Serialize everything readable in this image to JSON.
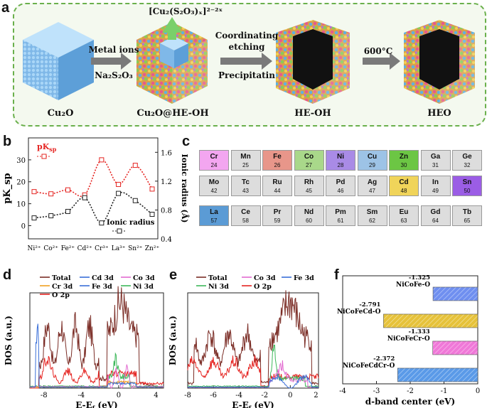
{
  "panels": {
    "a": "a",
    "b": "b",
    "c": "c",
    "d": "d",
    "e": "e",
    "f": "f"
  },
  "schematic": {
    "stages": [
      "Cu₂O",
      "Cu₂O@HE-OH",
      "HE-OH",
      "HEO"
    ],
    "arrow1": [
      "Metal ions",
      "Na₂S₂O₃"
    ],
    "arrow2": [
      "Coordinating",
      "etching",
      "Precipitatin"
    ],
    "arrow3": "600°C",
    "complex": "[Cu₂(S₂O₃)ₓ]²⁻²ˣ"
  },
  "colors": {
    "red": "#e52421",
    "black": "#222222",
    "pink": "#f3a6f0",
    "salmon": "#e8968a",
    "green": "#a9d88a",
    "violet": "#a98be6",
    "blue": "#9dc3e6",
    "lime": "#6cc644",
    "yellow": "#f0d45a",
    "purple": "#9b5de5",
    "lablue": "#5b9bd5",
    "gray": "#dddddd"
  },
  "periodic_table": {
    "rows": [
      [
        {
          "s": "Cr",
          "n": "24",
          "c": "pink"
        },
        {
          "s": "Mn",
          "n": "25",
          "c": "gray"
        },
        {
          "s": "Fe",
          "n": "26",
          "c": "salmon"
        },
        {
          "s": "Co",
          "n": "27",
          "c": "green"
        },
        {
          "s": "Ni",
          "n": "28",
          "c": "violet"
        },
        {
          "s": "Cu",
          "n": "29",
          "c": "blue"
        },
        {
          "s": "Zn",
          "n": "30",
          "c": "lime"
        },
        {
          "s": "Ga",
          "n": "31",
          "c": "gray"
        },
        {
          "s": "Ge",
          "n": "32",
          "c": "gray"
        }
      ],
      [
        {
          "s": "Mo",
          "n": "42",
          "c": "gray"
        },
        {
          "s": "Tc",
          "n": "43",
          "c": "gray"
        },
        {
          "s": "Ru",
          "n": "44",
          "c": "gray"
        },
        {
          "s": "Rh",
          "n": "45",
          "c": "gray"
        },
        {
          "s": "Pd",
          "n": "46",
          "c": "gray"
        },
        {
          "s": "Ag",
          "n": "47",
          "c": "gray"
        },
        {
          "s": "Cd",
          "n": "48",
          "c": "yellow"
        },
        {
          "s": "In",
          "n": "49",
          "c": "gray"
        },
        {
          "s": "Sn",
          "n": "50",
          "c": "purple"
        }
      ],
      [
        {
          "s": "La",
          "n": "57",
          "c": "lablue"
        },
        {
          "s": "Ce",
          "n": "58",
          "c": "gray"
        },
        {
          "s": "Pr",
          "n": "59",
          "c": "gray"
        },
        {
          "s": "Nd",
          "n": "60",
          "c": "gray"
        },
        {
          "s": "Pm",
          "n": "61",
          "c": "gray"
        },
        {
          "s": "Sm",
          "n": "62",
          "c": "gray"
        },
        {
          "s": "Eu",
          "n": "63",
          "c": "gray"
        },
        {
          "s": "Gd",
          "n": "64",
          "c": "gray"
        },
        {
          "s": "Tb",
          "n": "65",
          "c": "gray"
        }
      ]
    ]
  },
  "chart_data": [
    {
      "id": "b",
      "type": "line",
      "categories": [
        "Ni²⁺",
        "Co²⁺",
        "Fe²⁺",
        "Cd²⁺",
        "Cr³⁺",
        "La³⁺",
        "Sn²⁺",
        "Zn²⁺"
      ],
      "ylabel": "pK_sp",
      "y2label": "Ionic radius (Å)",
      "yticks": [
        "0",
        "10",
        "20",
        "30"
      ],
      "y2ticks": [
        "0.4",
        "0.8",
        "1.2",
        "1.6"
      ],
      "ylim": [
        -6,
        40
      ],
      "y2lim": [
        0.4,
        1.8
      ],
      "series": [
        {
          "name": "pK_sp",
          "legend": "pK",
          "legend_sub": "sp",
          "values": [
            15.5,
            14.5,
            16.3,
            14.0,
            30.0,
            18.8,
            27.5,
            16.7
          ],
          "color": "red"
        },
        {
          "name": "Ionic radius",
          "legend": "Ionic radius",
          "values": [
            0.69,
            0.72,
            0.78,
            0.97,
            0.62,
            1.03,
            0.93,
            0.74
          ],
          "color": "black"
        }
      ]
    },
    {
      "id": "d",
      "type": "line",
      "xlabel": "E-E",
      "xlabel_sub": "f",
      "xlabel_unit": " (eV)",
      "ylabel": "DOS (a.u.)",
      "xticks": [
        "-8",
        "-4",
        "0",
        "4"
      ],
      "xlim": [
        -9.5,
        4.8
      ],
      "legend": [
        {
          "label": "Total",
          "color": "#7b2d26"
        },
        {
          "label": "Cd 3d",
          "color": "#3a6fd8"
        },
        {
          "label": "Co 3d",
          "color": "#e26ad0"
        },
        {
          "label": "Cr 3d",
          "color": "#f0a020"
        },
        {
          "label": "Fe 3d",
          "color": "#3a6fd8"
        },
        {
          "label": "Ni 3d",
          "color": "#3db85a"
        },
        {
          "label": "O 2p",
          "color": "#e52421"
        }
      ]
    },
    {
      "id": "e",
      "type": "line",
      "xlabel": "E-E",
      "xlabel_sub": "f",
      "xlabel_unit": " (eV)",
      "ylabel": "DOS (a.u.)",
      "xticks": [
        "-8",
        "-6",
        "-4",
        "-2",
        "0",
        "2"
      ],
      "xlim": [
        -8,
        2.2
      ],
      "legend": [
        {
          "label": "Total",
          "color": "#7b2d26"
        },
        {
          "label": "Co 3d",
          "color": "#e26ad0"
        },
        {
          "label": "Fe 3d",
          "color": "#3a6fd8"
        },
        {
          "label": "Ni 3d",
          "color": "#3db85a"
        },
        {
          "label": "O 2p",
          "color": "#e52421"
        }
      ]
    },
    {
      "id": "f",
      "type": "bar",
      "xlabel": "d-band center (eV)",
      "xticks": [
        "-4",
        "-3",
        "-2",
        "-1",
        "0"
      ],
      "xlim": [
        -4,
        0
      ],
      "categories": [
        "NiCoFe-O",
        "NiCoFeCd-O",
        "NiCoFeCr-O",
        "NiCoFeCdCr-O"
      ],
      "values": [
        -1.325,
        -2.791,
        -1.333,
        -2.372
      ],
      "labels": [
        "-1.325",
        "-2.791",
        "-1.333",
        "-2.372"
      ],
      "colors": [
        "#6f8ff0",
        "#e6c23a",
        "#f078d8",
        "#5a9ae8"
      ]
    }
  ]
}
